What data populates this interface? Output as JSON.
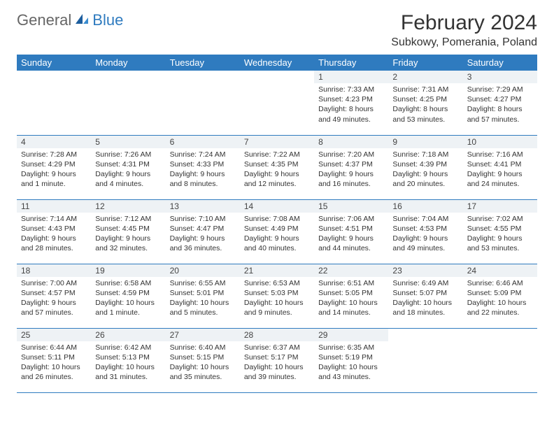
{
  "brand": {
    "general": "General",
    "blue": "Blue"
  },
  "title": "February 2024",
  "location": "Subkowy, Pomerania, Poland",
  "colors": {
    "header_bg": "#2f7bbf",
    "header_fg": "#ffffff",
    "daynum_bg": "#eef2f5",
    "rule": "#2f7bbf"
  },
  "weekdays": [
    "Sunday",
    "Monday",
    "Tuesday",
    "Wednesday",
    "Thursday",
    "Friday",
    "Saturday"
  ],
  "weeks": [
    [
      null,
      null,
      null,
      null,
      {
        "n": "1",
        "sr": "7:33 AM",
        "ss": "4:23 PM",
        "dl": "8 hours and 49 minutes."
      },
      {
        "n": "2",
        "sr": "7:31 AM",
        "ss": "4:25 PM",
        "dl": "8 hours and 53 minutes."
      },
      {
        "n": "3",
        "sr": "7:29 AM",
        "ss": "4:27 PM",
        "dl": "8 hours and 57 minutes."
      }
    ],
    [
      {
        "n": "4",
        "sr": "7:28 AM",
        "ss": "4:29 PM",
        "dl": "9 hours and 1 minute."
      },
      {
        "n": "5",
        "sr": "7:26 AM",
        "ss": "4:31 PM",
        "dl": "9 hours and 4 minutes."
      },
      {
        "n": "6",
        "sr": "7:24 AM",
        "ss": "4:33 PM",
        "dl": "9 hours and 8 minutes."
      },
      {
        "n": "7",
        "sr": "7:22 AM",
        "ss": "4:35 PM",
        "dl": "9 hours and 12 minutes."
      },
      {
        "n": "8",
        "sr": "7:20 AM",
        "ss": "4:37 PM",
        "dl": "9 hours and 16 minutes."
      },
      {
        "n": "9",
        "sr": "7:18 AM",
        "ss": "4:39 PM",
        "dl": "9 hours and 20 minutes."
      },
      {
        "n": "10",
        "sr": "7:16 AM",
        "ss": "4:41 PM",
        "dl": "9 hours and 24 minutes."
      }
    ],
    [
      {
        "n": "11",
        "sr": "7:14 AM",
        "ss": "4:43 PM",
        "dl": "9 hours and 28 minutes."
      },
      {
        "n": "12",
        "sr": "7:12 AM",
        "ss": "4:45 PM",
        "dl": "9 hours and 32 minutes."
      },
      {
        "n": "13",
        "sr": "7:10 AM",
        "ss": "4:47 PM",
        "dl": "9 hours and 36 minutes."
      },
      {
        "n": "14",
        "sr": "7:08 AM",
        "ss": "4:49 PM",
        "dl": "9 hours and 40 minutes."
      },
      {
        "n": "15",
        "sr": "7:06 AM",
        "ss": "4:51 PM",
        "dl": "9 hours and 44 minutes."
      },
      {
        "n": "16",
        "sr": "7:04 AM",
        "ss": "4:53 PM",
        "dl": "9 hours and 49 minutes."
      },
      {
        "n": "17",
        "sr": "7:02 AM",
        "ss": "4:55 PM",
        "dl": "9 hours and 53 minutes."
      }
    ],
    [
      {
        "n": "18",
        "sr": "7:00 AM",
        "ss": "4:57 PM",
        "dl": "9 hours and 57 minutes."
      },
      {
        "n": "19",
        "sr": "6:58 AM",
        "ss": "4:59 PM",
        "dl": "10 hours and 1 minute."
      },
      {
        "n": "20",
        "sr": "6:55 AM",
        "ss": "5:01 PM",
        "dl": "10 hours and 5 minutes."
      },
      {
        "n": "21",
        "sr": "6:53 AM",
        "ss": "5:03 PM",
        "dl": "10 hours and 9 minutes."
      },
      {
        "n": "22",
        "sr": "6:51 AM",
        "ss": "5:05 PM",
        "dl": "10 hours and 14 minutes."
      },
      {
        "n": "23",
        "sr": "6:49 AM",
        "ss": "5:07 PM",
        "dl": "10 hours and 18 minutes."
      },
      {
        "n": "24",
        "sr": "6:46 AM",
        "ss": "5:09 PM",
        "dl": "10 hours and 22 minutes."
      }
    ],
    [
      {
        "n": "25",
        "sr": "6:44 AM",
        "ss": "5:11 PM",
        "dl": "10 hours and 26 minutes."
      },
      {
        "n": "26",
        "sr": "6:42 AM",
        "ss": "5:13 PM",
        "dl": "10 hours and 31 minutes."
      },
      {
        "n": "27",
        "sr": "6:40 AM",
        "ss": "5:15 PM",
        "dl": "10 hours and 35 minutes."
      },
      {
        "n": "28",
        "sr": "6:37 AM",
        "ss": "5:17 PM",
        "dl": "10 hours and 39 minutes."
      },
      {
        "n": "29",
        "sr": "6:35 AM",
        "ss": "5:19 PM",
        "dl": "10 hours and 43 minutes."
      },
      null,
      null
    ]
  ],
  "labels": {
    "sunrise": "Sunrise: ",
    "sunset": "Sunset: ",
    "daylight": "Daylight: "
  }
}
